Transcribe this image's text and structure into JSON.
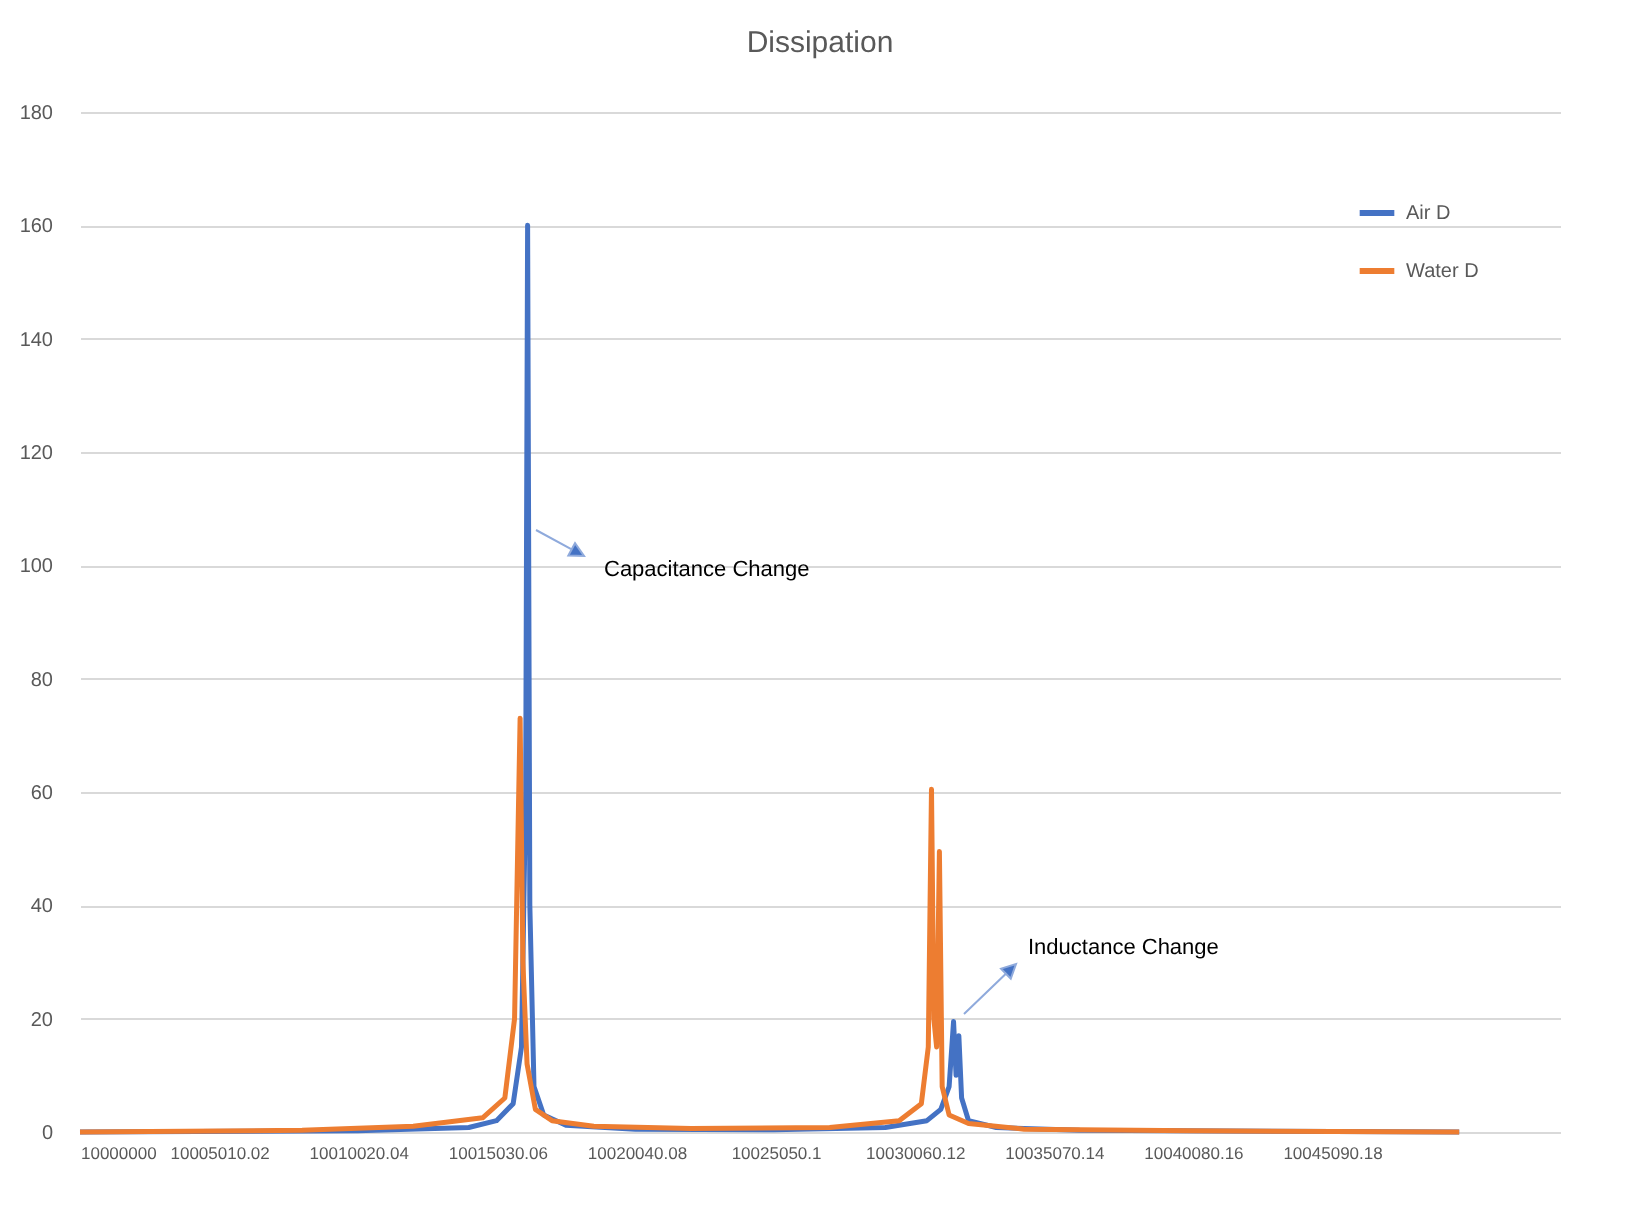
{
  "chart_data": {
    "type": "line",
    "title": "Dissipation",
    "xlim": [
      10000000,
      10053300
    ],
    "xticks": [
      {
        "value": 10000000,
        "label": "10000000"
      },
      {
        "value": 10005010.02,
        "label": "10005010.02"
      },
      {
        "value": 10010020.04,
        "label": "10010020.04"
      },
      {
        "value": 10015030.06,
        "label": "10015030.06"
      },
      {
        "value": 10020040.08,
        "label": "10020040.08"
      },
      {
        "value": 10025050.1,
        "label": "10025050.1"
      },
      {
        "value": 10030060.12,
        "label": "10030060.12"
      },
      {
        "value": 10035070.14,
        "label": "10035070.14"
      },
      {
        "value": 10040080.16,
        "label": "10040080.16"
      },
      {
        "value": 10045090.18,
        "label": "10045090.18"
      }
    ],
    "ylim": [
      0,
      180
    ],
    "yticks": [
      0,
      20,
      40,
      60,
      80,
      100,
      120,
      140,
      160,
      180
    ],
    "grid": "y",
    "legend": "top right",
    "series": [
      {
        "name": "Air D",
        "color": "#4472c4",
        "x": [
          10000000,
          10010000,
          10014000,
          10015000,
          10015600,
          10015900,
          10016050,
          10016120,
          10016200,
          10016350,
          10016700,
          10017500,
          10020000,
          10025000,
          10029000,
          10030500,
          10031000,
          10031300,
          10031460,
          10031550,
          10031650,
          10031750,
          10032000,
          10033000,
          10036000,
          10049670
        ],
        "values": [
          0,
          0.2,
          0.8,
          2,
          5,
          15,
          60,
          160,
          40,
          8,
          3,
          1.2,
          0.5,
          0.4,
          0.8,
          2,
          4,
          8,
          19.5,
          10,
          17,
          6,
          2,
          0.8,
          0.3,
          0
        ]
      },
      {
        "name": "Water D",
        "color": "#ed7d31",
        "x": [
          10000000,
          10008000,
          10012000,
          10014500,
          10015300,
          10015650,
          10015850,
          10015950,
          10016100,
          10016400,
          10017000,
          10018500,
          10022000,
          10027000,
          10029500,
          10030300,
          10030550,
          10030665,
          10030750,
          10030850,
          10030950,
          10031050,
          10031300,
          10032000,
          10034000,
          10040000,
          10049670
        ],
        "values": [
          0,
          0.3,
          1,
          2.5,
          6,
          20,
          73,
          30,
          12,
          4,
          2,
          1,
          0.6,
          0.8,
          2,
          5,
          15,
          60.5,
          20,
          15,
          49.5,
          8,
          3,
          1.5,
          0.5,
          0.2,
          0
        ]
      }
    ],
    "annotations": [
      "Capacitance Change",
      "Inductance Change"
    ]
  }
}
